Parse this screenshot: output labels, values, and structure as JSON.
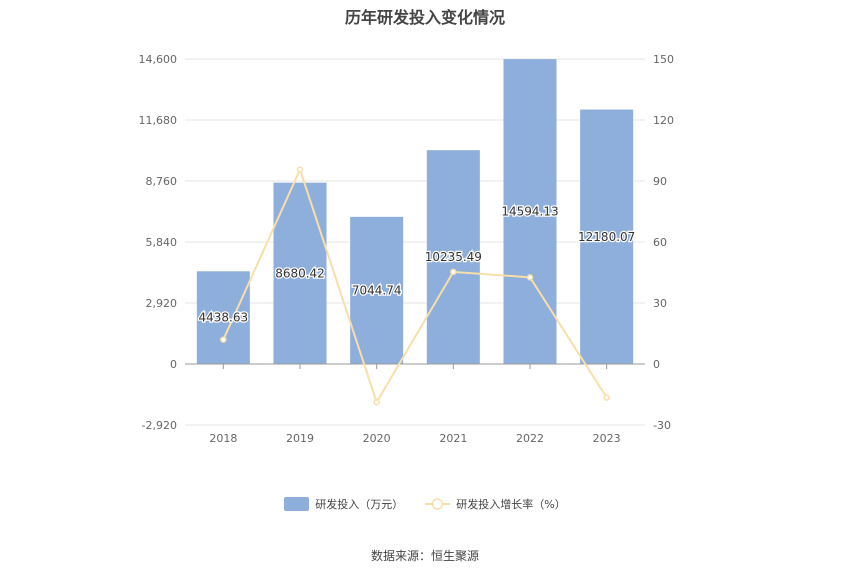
{
  "chart_data": {
    "type": "bar",
    "title": "历年研发投入变化情况",
    "categories": [
      "2018",
      "2019",
      "2020",
      "2021",
      "2022",
      "2023"
    ],
    "series": [
      {
        "name": "研发投入（万元）",
        "type": "bar",
        "axis": "left",
        "color": "#8eaedb",
        "values": [
          4438.63,
          8680.42,
          7044.74,
          10235.49,
          14594.13,
          12180.07
        ],
        "labels": [
          "4438.63",
          "8680.42",
          "7044.74",
          "10235.49",
          "14594.13",
          "12180.07"
        ]
      },
      {
        "name": "研发投入增长率（%）",
        "type": "line",
        "axis": "right",
        "color": "#f8dfa8",
        "values": [
          12,
          95.6,
          -18.8,
          45.3,
          42.6,
          -16.5
        ]
      }
    ],
    "y_left": {
      "min": -2920,
      "max": 14600,
      "ticks": [
        "-2,920",
        "0",
        "2,920",
        "5,840",
        "8,760",
        "11,680",
        "14,600"
      ]
    },
    "y_right": {
      "min": -30,
      "max": 150,
      "ticks": [
        "-30",
        "0",
        "30",
        "60",
        "90",
        "120",
        "150"
      ]
    },
    "grid": true,
    "legend_position": "bottom"
  },
  "footer": {
    "source": "数据来源：恒生聚源"
  }
}
